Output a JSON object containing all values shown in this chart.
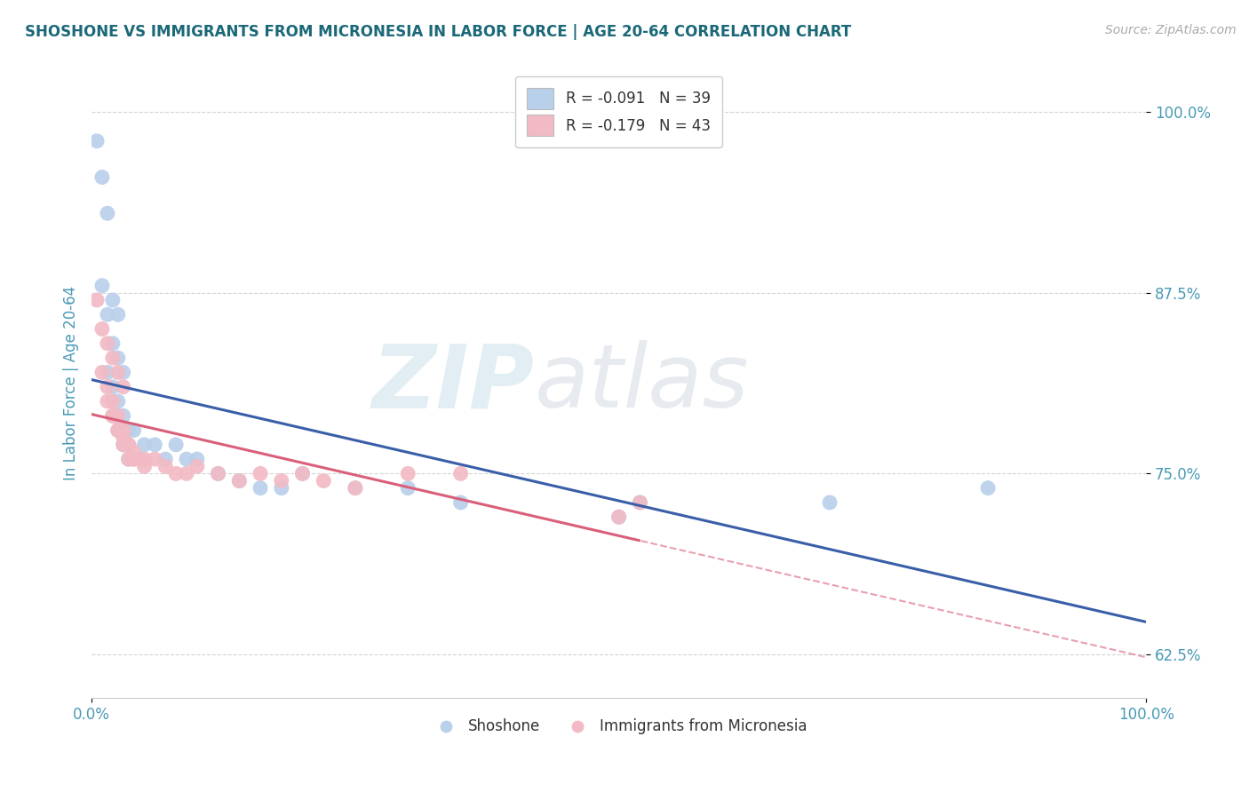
{
  "title": "SHOSHONE VS IMMIGRANTS FROM MICRONESIA IN LABOR FORCE | AGE 20-64 CORRELATION CHART",
  "source_text": "Source: ZipAtlas.com",
  "ylabel": "In Labor Force | Age 20-64",
  "xlim": [
    0.0,
    1.0
  ],
  "ylim": [
    0.595,
    1.03
  ],
  "yticks": [
    0.625,
    0.75,
    0.875,
    1.0
  ],
  "ytick_labels": [
    "62.5%",
    "75.0%",
    "87.5%",
    "100.0%"
  ],
  "xtick_labels": [
    "0.0%",
    "100.0%"
  ],
  "xtick_positions": [
    0.0,
    1.0
  ],
  "legend_entries": [
    {
      "label": "R = -0.091   N = 39",
      "color": "#b8d0ea"
    },
    {
      "label": "R = -0.179   N = 43",
      "color": "#f2bac4"
    }
  ],
  "legend_bottom": [
    "Shoshone",
    "Immigrants from Micronesia"
  ],
  "shoshone_color": "#b8d0ea",
  "micronesia_color": "#f2bac4",
  "shoshone_line_color": "#3a5ea8",
  "micronesia_line_color": "#d9607a",
  "watermark_zip": "ZIP",
  "watermark_atlas": "atlas",
  "grid_color": "#d0d0d0",
  "background_color": "#ffffff",
  "title_color": "#1a6878",
  "axis_color": "#4a9ab5",
  "shoshone_x": [
    0.005,
    0.01,
    0.015,
    0.02,
    0.025,
    0.01,
    0.015,
    0.02,
    0.025,
    0.03,
    0.015,
    0.02,
    0.025,
    0.03,
    0.035,
    0.02,
    0.025,
    0.03,
    0.035,
    0.04,
    0.04,
    0.05,
    0.06,
    0.07,
    0.08,
    0.09,
    0.1,
    0.12,
    0.14,
    0.16,
    0.18,
    0.2,
    0.25,
    0.3,
    0.35,
    0.5,
    0.52,
    0.7,
    0.85
  ],
  "shoshone_y": [
    0.98,
    0.955,
    0.93,
    0.87,
    0.86,
    0.88,
    0.86,
    0.84,
    0.83,
    0.82,
    0.82,
    0.81,
    0.8,
    0.79,
    0.78,
    0.79,
    0.78,
    0.77,
    0.76,
    0.76,
    0.78,
    0.77,
    0.77,
    0.76,
    0.77,
    0.76,
    0.76,
    0.75,
    0.745,
    0.74,
    0.74,
    0.75,
    0.74,
    0.74,
    0.73,
    0.72,
    0.73,
    0.73,
    0.74
  ],
  "micronesia_x": [
    0.005,
    0.01,
    0.015,
    0.02,
    0.025,
    0.03,
    0.01,
    0.015,
    0.02,
    0.025,
    0.03,
    0.015,
    0.02,
    0.025,
    0.03,
    0.035,
    0.02,
    0.025,
    0.03,
    0.035,
    0.04,
    0.03,
    0.035,
    0.04,
    0.045,
    0.05,
    0.05,
    0.06,
    0.07,
    0.08,
    0.09,
    0.1,
    0.12,
    0.14,
    0.16,
    0.18,
    0.2,
    0.22,
    0.25,
    0.3,
    0.35,
    0.5,
    0.52
  ],
  "micronesia_y": [
    0.87,
    0.85,
    0.84,
    0.83,
    0.82,
    0.81,
    0.82,
    0.81,
    0.8,
    0.79,
    0.78,
    0.8,
    0.79,
    0.78,
    0.77,
    0.76,
    0.79,
    0.78,
    0.775,
    0.77,
    0.76,
    0.78,
    0.77,
    0.765,
    0.76,
    0.755,
    0.76,
    0.76,
    0.755,
    0.75,
    0.75,
    0.755,
    0.75,
    0.745,
    0.75,
    0.745,
    0.75,
    0.745,
    0.74,
    0.75,
    0.75,
    0.72,
    0.73
  ]
}
